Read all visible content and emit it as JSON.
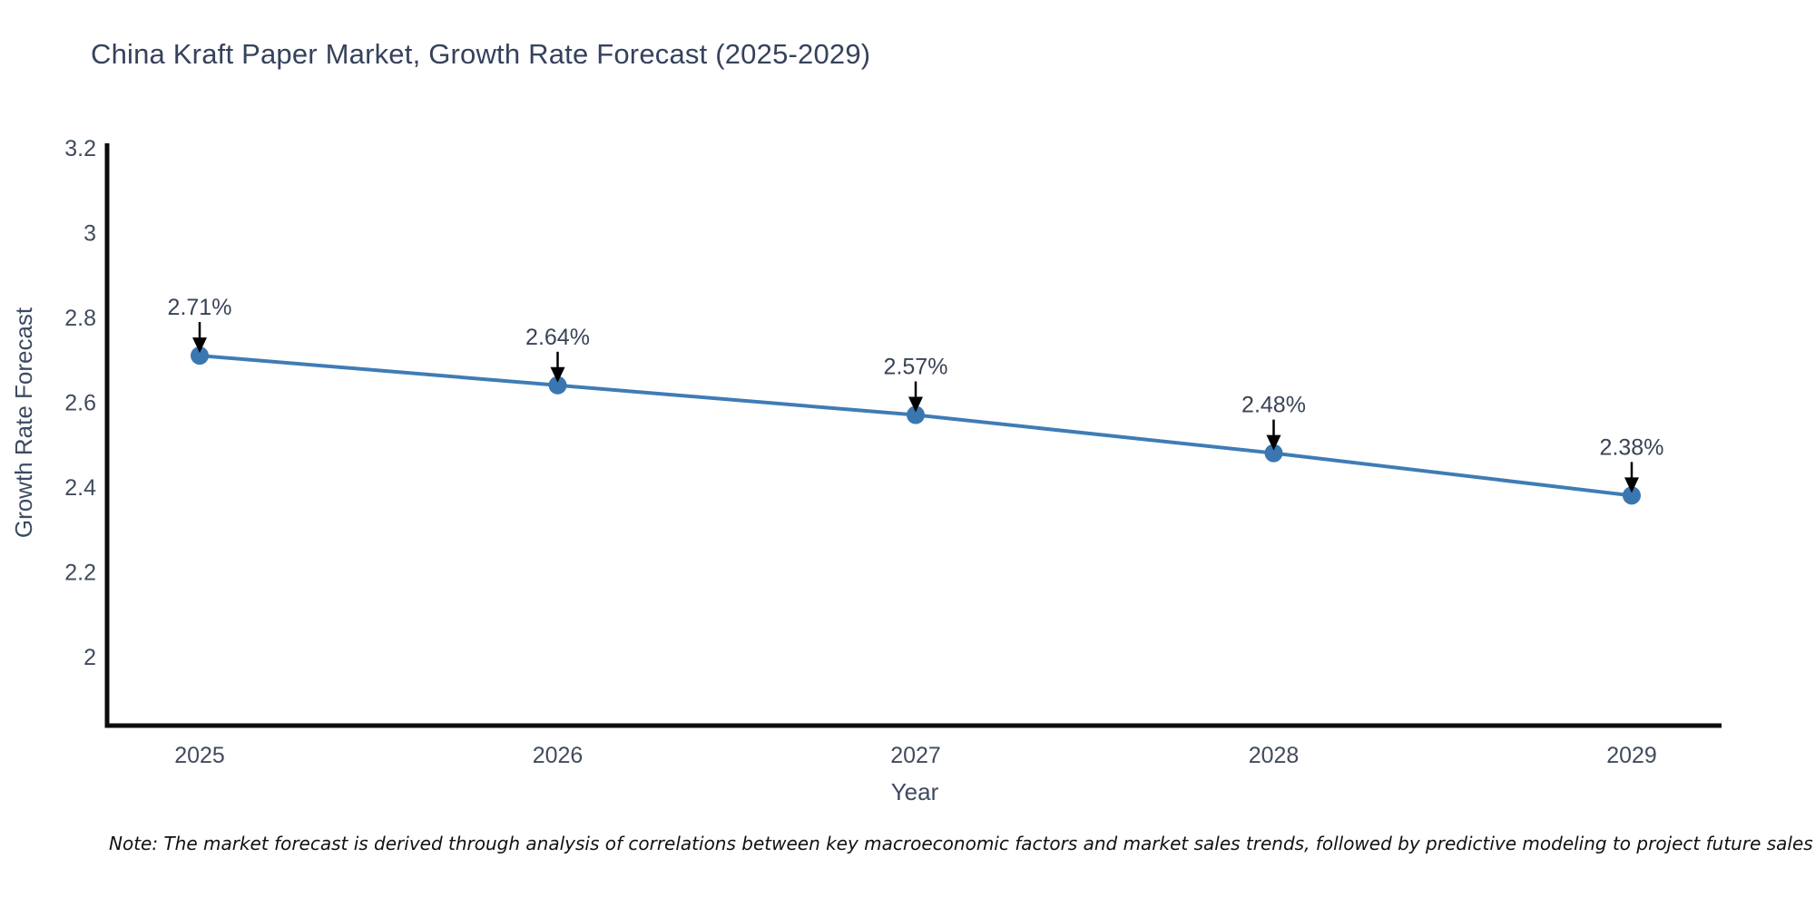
{
  "title": "China Kraft Paper Market, Growth Rate Forecast (2025-2029)",
  "note": "Note: The market forecast is derived through analysis of correlations between key macroeconomic factors and market sales trends, followed by predictive modeling to project future sales",
  "chart_data": {
    "type": "line",
    "title": "China Kraft Paper Market, Growth Rate Forecast (2025-2029)",
    "xlabel": "Year",
    "ylabel": "Growth Rate Forecast",
    "categories": [
      "2025",
      "2026",
      "2027",
      "2028",
      "2029"
    ],
    "series": [
      {
        "name": "Growth Rate Forecast",
        "values": [
          2.71,
          2.64,
          2.57,
          2.48,
          2.38
        ]
      }
    ],
    "point_labels": [
      "2.71%",
      "2.64%",
      "2.57%",
      "2.48%",
      "2.38%"
    ],
    "y_ticks": [
      {
        "label": "3.2",
        "value": 3.2
      },
      {
        "label": "3",
        "value": 3.0
      },
      {
        "label": "2.8",
        "value": 2.8
      },
      {
        "label": "2.6",
        "value": 2.6
      },
      {
        "label": "2.4",
        "value": 2.4
      },
      {
        "label": "2.2",
        "value": 2.2
      },
      {
        "label": "2",
        "value": 2.0
      }
    ],
    "ylim": [
      1.84,
      3.2
    ],
    "grid": false,
    "legend": "none",
    "annotation_style": "down-arrow-to-point",
    "colors": {
      "line": "#3f7cb5",
      "marker": "#3a77b0",
      "arrow": "#000000",
      "axis": "#0d0d0d",
      "title": "#36425c",
      "axis_label": "#3c4a61",
      "tick_label": "#414b5e",
      "annotation": "#3a4357",
      "note": "#111111",
      "background": "#ffffff"
    }
  }
}
